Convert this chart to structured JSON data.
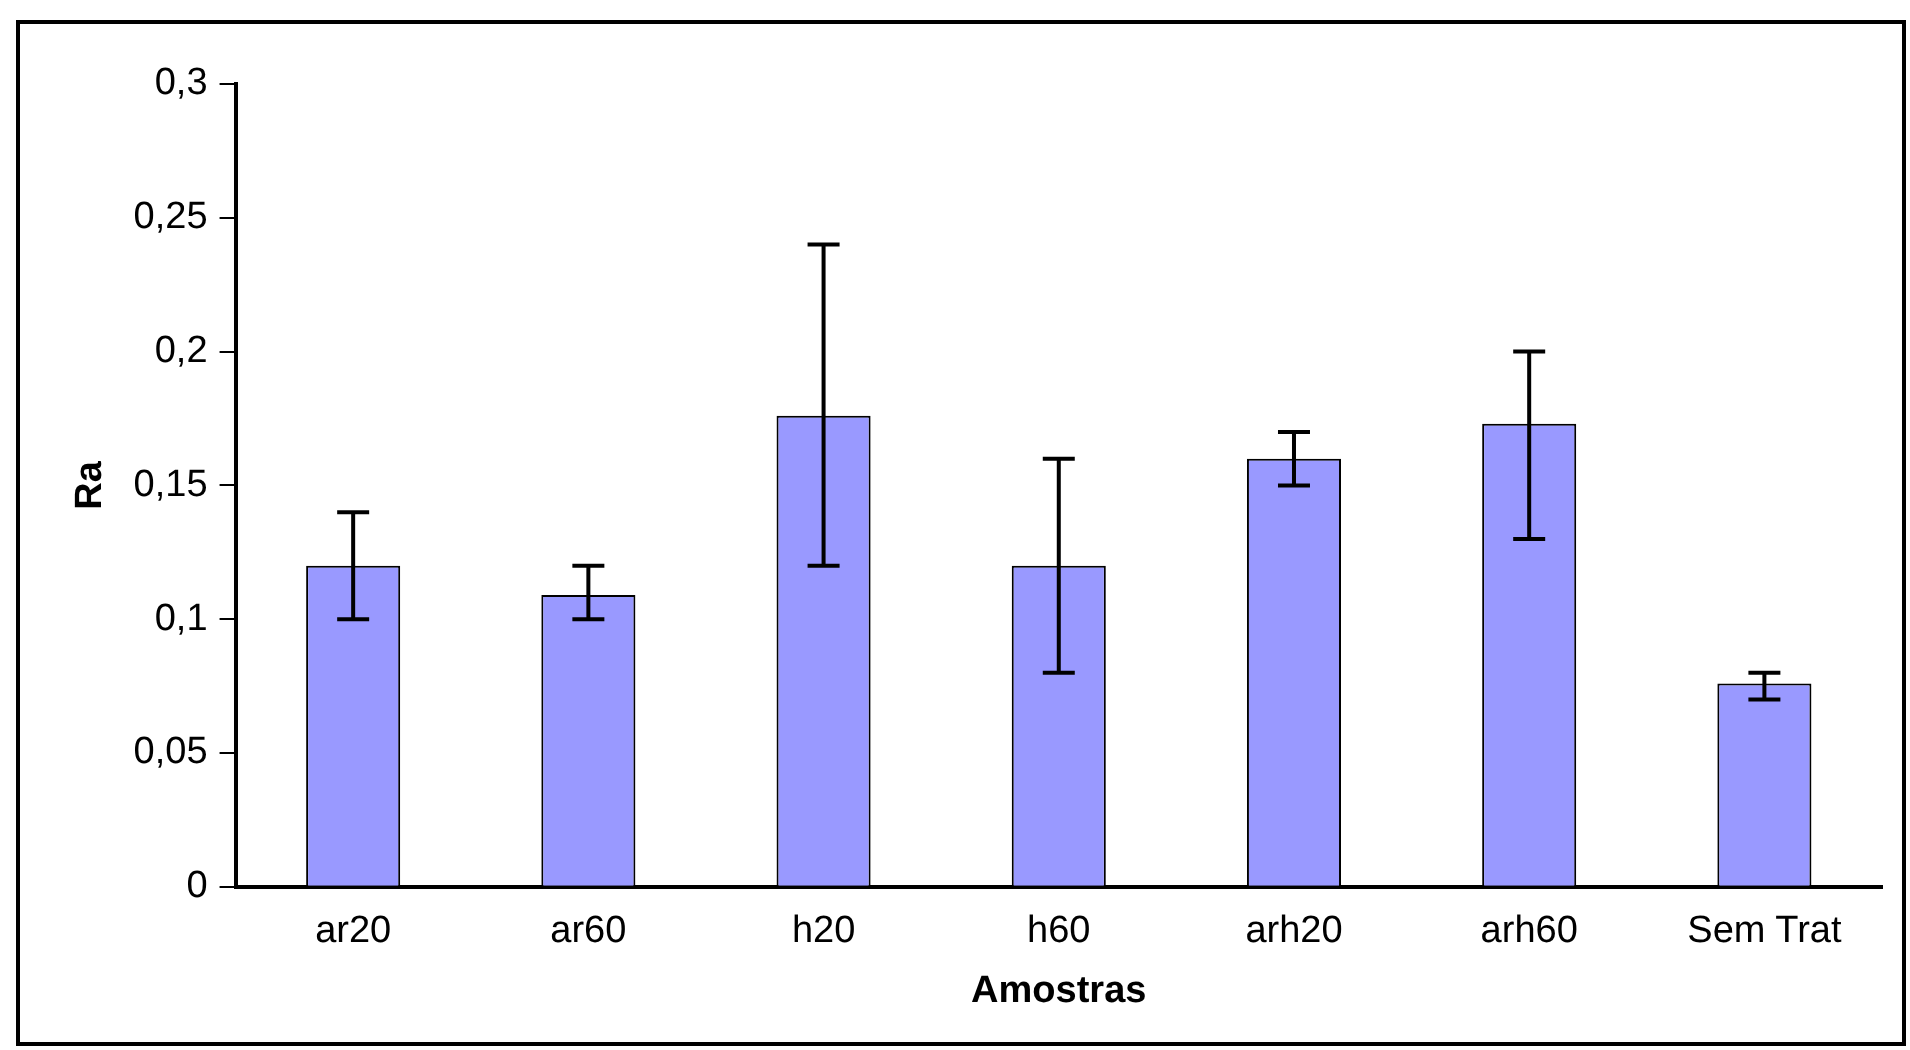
{
  "chart_data": {
    "type": "bar",
    "xlabel": "Amostras",
    "ylabel": "Ra",
    "categories": [
      "ar20",
      "ar60",
      "h20",
      "h60",
      "arh20",
      "arh60",
      "Sem Trat"
    ],
    "values": [
      0.12,
      0.109,
      0.176,
      0.12,
      0.16,
      0.173,
      0.076
    ],
    "errors": [
      [
        0.1,
        0.14
      ],
      [
        0.1,
        0.12
      ],
      [
        0.12,
        0.24
      ],
      [
        0.08,
        0.16
      ],
      [
        0.15,
        0.17
      ],
      [
        0.13,
        0.2
      ],
      [
        0.07,
        0.08
      ]
    ],
    "color": "#9999ff",
    "ylim": [
      0,
      0.3
    ],
    "yticks": [
      {
        "value": 0,
        "label": "0"
      },
      {
        "value": 0.05,
        "label": "0,05"
      },
      {
        "value": 0.1,
        "label": "0,1"
      },
      {
        "value": 0.15,
        "label": "0,15"
      },
      {
        "value": 0.2,
        "label": "0,2"
      },
      {
        "value": 0.25,
        "label": "0,25"
      },
      {
        "value": 0.3,
        "label": "0,3"
      }
    ],
    "grid": false,
    "legend": false
  }
}
